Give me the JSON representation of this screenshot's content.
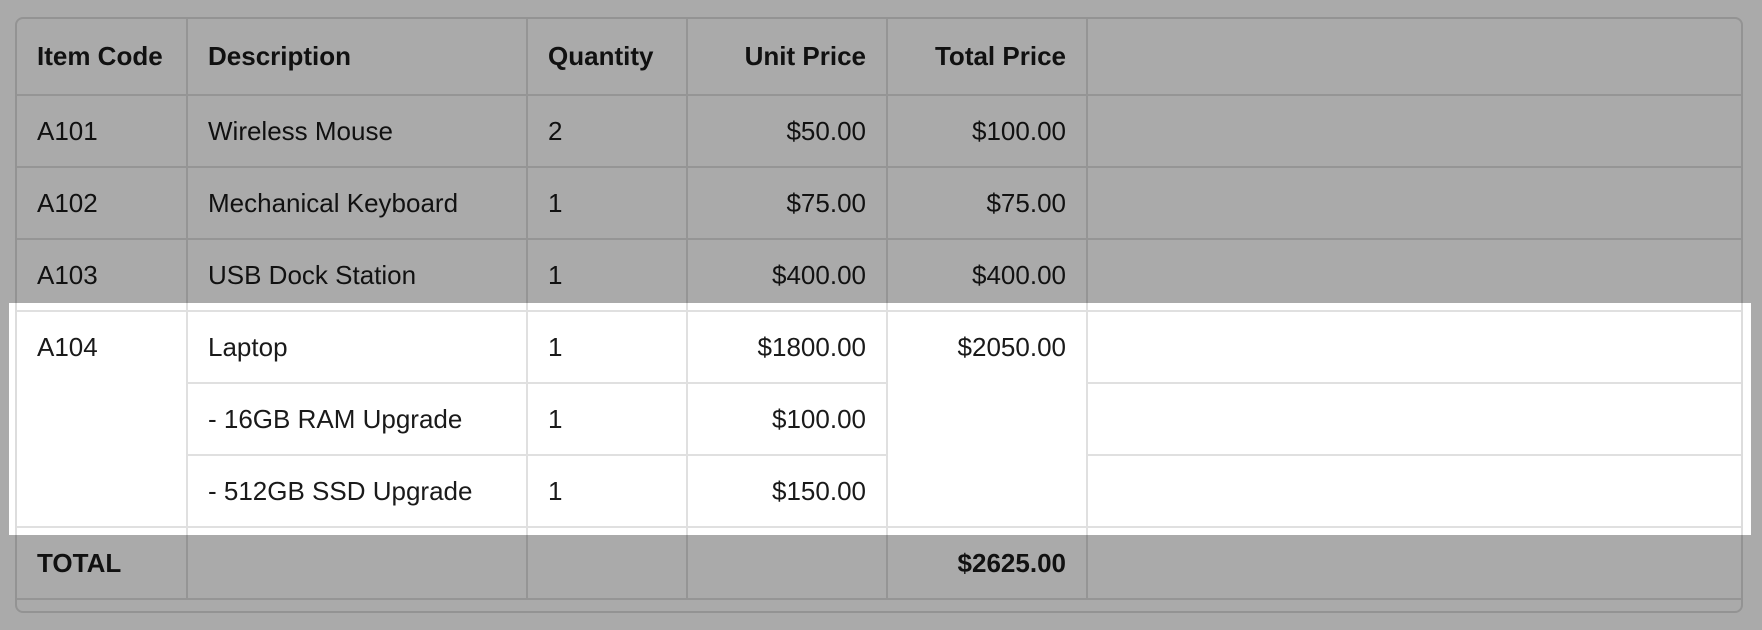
{
  "table": {
    "headers": [
      "Item Code",
      "Description",
      "Quantity",
      "Unit Price",
      "Total Price",
      ""
    ],
    "rows": [
      {
        "code": "A101",
        "description": "Wireless Mouse",
        "quantity": "2",
        "unit_price": "$50.00",
        "total_price": "$100.00"
      },
      {
        "code": "A102",
        "description": "Mechanical Keyboard",
        "quantity": "1",
        "unit_price": "$75.00",
        "total_price": "$75.00"
      },
      {
        "code": "A103",
        "description": "USB Dock Station",
        "quantity": "1",
        "unit_price": "$400.00",
        "total_price": "$400.00"
      }
    ],
    "group": {
      "code": "A104",
      "total_price": "$2050.00",
      "lines": [
        {
          "description": "Laptop",
          "quantity": "1",
          "unit_price": "$1800.00"
        },
        {
          "description": "- 16GB RAM Upgrade",
          "quantity": "1",
          "unit_price": "$100.00"
        },
        {
          "description": "- 512GB SSD Upgrade",
          "quantity": "1",
          "unit_price": "$150.00"
        }
      ]
    },
    "total": {
      "label": "TOTAL",
      "value": "$2625.00"
    }
  },
  "highlight": {
    "color": "#ffffff",
    "dim_overlay": "#aaaaaa"
  }
}
